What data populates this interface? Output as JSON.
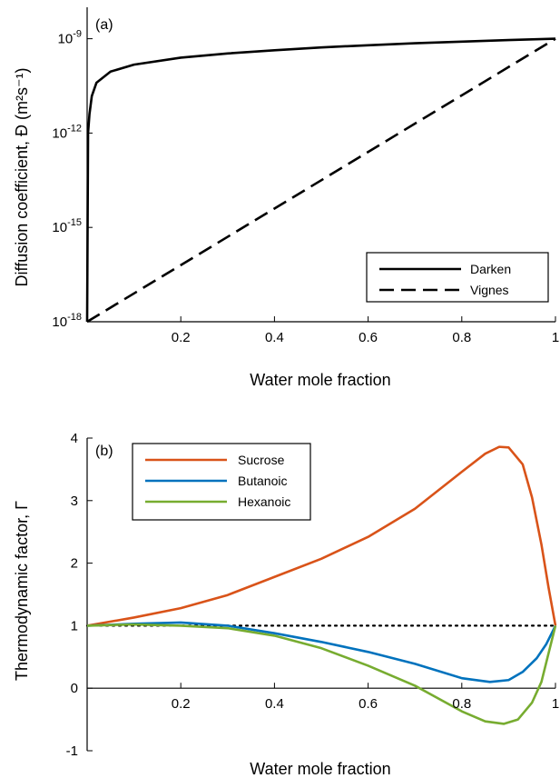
{
  "chart_data": [
    {
      "type": "line",
      "panel_label": "(a)",
      "title": "",
      "xlabel": "Water mole fraction",
      "ylabel": "Diffusion  coefficient, Đ (m²s⁻¹)",
      "y_scale": "log",
      "xlim": [
        0,
        1
      ],
      "ylim": [
        1e-18,
        1e-08
      ],
      "x_ticks": [
        "0.2",
        "0.4",
        "0.6",
        "0.8",
        "1"
      ],
      "y_ticks": [
        {
          "base": "10",
          "exp": "-18"
        },
        {
          "base": "10",
          "exp": "-15"
        },
        {
          "base": "10",
          "exp": "-12"
        },
        {
          "base": "10",
          "exp": "-9"
        }
      ],
      "grid": false,
      "legend_position": "bottom-right",
      "series": [
        {
          "name": "Darken",
          "color": "#000000",
          "dash": "solid",
          "x": [
            0.0,
            0.002,
            0.005,
            0.01,
            0.02,
            0.05,
            0.1,
            0.2,
            0.3,
            0.4,
            0.5,
            0.6,
            0.7,
            0.8,
            0.9,
            1.0
          ],
          "y": [
            1e-18,
            1e-12,
            4e-12,
            1.5e-11,
            4e-11,
            9e-11,
            1.5e-10,
            2.5e-10,
            3.4e-10,
            4.3e-10,
            5.3e-10,
            6.2e-10,
            7.2e-10,
            8.1e-10,
            9.1e-10,
            1e-09
          ]
        },
        {
          "name": "Vignes",
          "color": "#000000",
          "dash": "dashed",
          "x": [
            0.0,
            1.0
          ],
          "y": [
            1e-18,
            1e-09
          ]
        }
      ]
    },
    {
      "type": "line",
      "panel_label": "(b)",
      "title": "",
      "xlabel": "Water mole fraction",
      "ylabel": "Thermodynamic factor, Γ",
      "xlim": [
        0,
        1
      ],
      "ylim": [
        -1,
        4
      ],
      "x_ticks": [
        "0.2",
        "0.4",
        "0.6",
        "0.8",
        "1"
      ],
      "y_ticks": [
        "-1",
        "0",
        "1",
        "2",
        "3",
        "4"
      ],
      "grid": false,
      "legend_position": "top-left",
      "reference_line": {
        "y": 1,
        "style": "dotted",
        "color": "#000000"
      },
      "series": [
        {
          "name": "Sucrose",
          "color": "#d95319",
          "x": [
            0.0,
            0.1,
            0.2,
            0.3,
            0.4,
            0.5,
            0.6,
            0.7,
            0.8,
            0.85,
            0.88,
            0.9,
            0.93,
            0.95,
            0.97,
            0.985,
            1.0
          ],
          "y": [
            1.0,
            1.13,
            1.28,
            1.49,
            1.78,
            2.07,
            2.42,
            2.87,
            3.46,
            3.75,
            3.86,
            3.85,
            3.58,
            3.05,
            2.3,
            1.62,
            1.0
          ]
        },
        {
          "name": "Butanoic",
          "color": "#0072bd",
          "x": [
            0.0,
            0.1,
            0.2,
            0.3,
            0.4,
            0.5,
            0.6,
            0.7,
            0.8,
            0.86,
            0.9,
            0.93,
            0.96,
            0.98,
            1.0
          ],
          "y": [
            1.0,
            1.03,
            1.05,
            1.0,
            0.88,
            0.74,
            0.58,
            0.39,
            0.16,
            0.1,
            0.13,
            0.26,
            0.48,
            0.7,
            1.0
          ]
        },
        {
          "name": "Hexanoic",
          "color": "#77ac30",
          "x": [
            0.0,
            0.1,
            0.2,
            0.3,
            0.4,
            0.5,
            0.6,
            0.7,
            0.8,
            0.85,
            0.89,
            0.92,
            0.95,
            0.97,
            0.985,
            1.0
          ],
          "y": [
            1.0,
            1.02,
            1.0,
            0.96,
            0.84,
            0.64,
            0.36,
            0.04,
            -0.37,
            -0.53,
            -0.57,
            -0.5,
            -0.23,
            0.1,
            0.55,
            1.0
          ]
        }
      ]
    }
  ]
}
